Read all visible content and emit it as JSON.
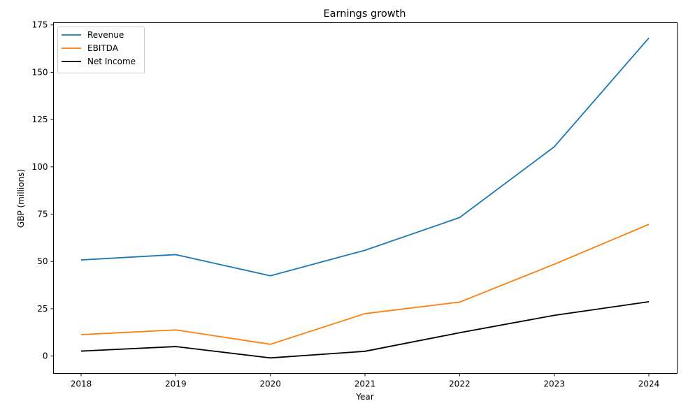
{
  "chart_data": {
    "type": "line",
    "title": "Earnings growth",
    "xlabel": "Year",
    "ylabel": "GBP (millions)",
    "categories": [
      "2018",
      "2019",
      "2020",
      "2021",
      "2022",
      "2023",
      "2024"
    ],
    "ylim": [
      -9.2,
      176.2
    ],
    "yticks": [
      0,
      25,
      50,
      75,
      100,
      125,
      150,
      175
    ],
    "grid": false,
    "legend_position": "upper left",
    "series": [
      {
        "name": "Revenue",
        "color": "#1f77b4",
        "values": [
          50.8,
          53.6,
          42.4,
          55.9,
          73.2,
          110.6,
          168.1
        ]
      },
      {
        "name": "EBITDA",
        "color": "#ff7f0e",
        "values": [
          11.3,
          13.8,
          6.2,
          22.4,
          28.5,
          48.5,
          69.6
        ]
      },
      {
        "name": "Net Income",
        "color": "#000000",
        "values": [
          2.6,
          5.0,
          -1.0,
          2.5,
          12.3,
          21.5,
          28.7
        ]
      }
    ]
  }
}
